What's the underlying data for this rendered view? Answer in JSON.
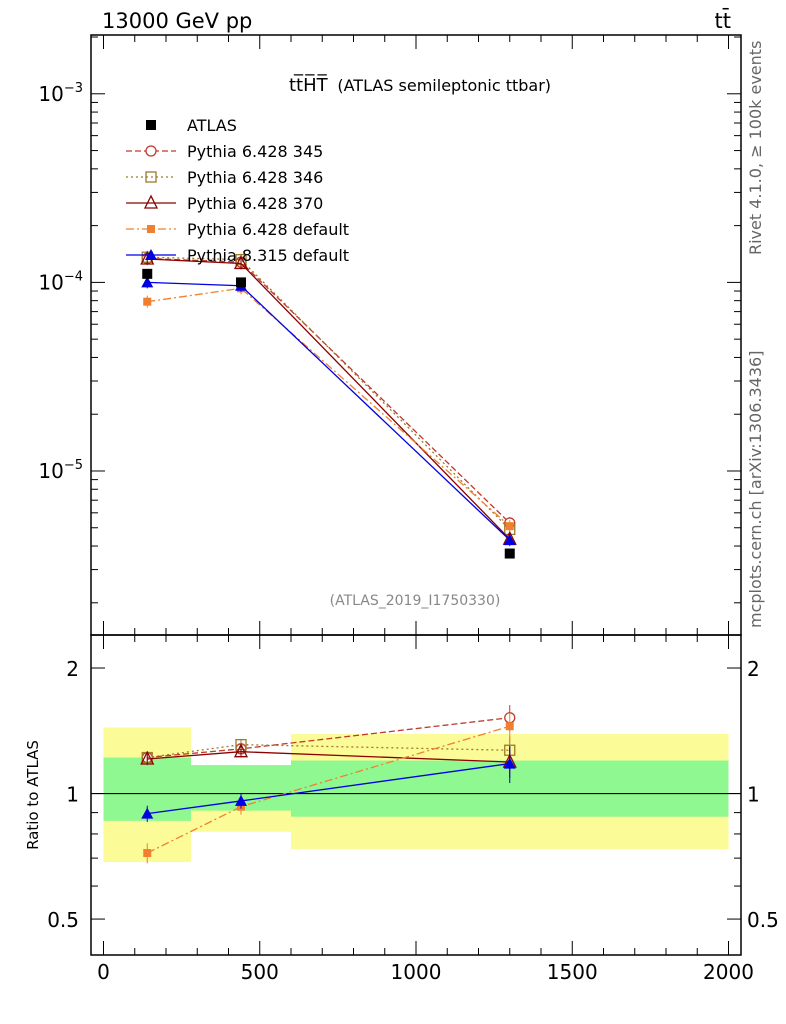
{
  "header": {
    "energy_label": "13000 GeV pp",
    "process_label": "tt̄"
  },
  "side_labels": {
    "rivet": "Rivet 4.1.0, ≥ 100k events",
    "mcplots": "mcplots.cern.ch [arXiv:1306.3436]"
  },
  "colors": {
    "atlas": "#000000",
    "p345": "#c0392b",
    "p346": "#9c7a2a",
    "p370": "#8b0000",
    "pdefault": "#f08030",
    "p8": "#0000e0",
    "band_inner": "#90f890",
    "band_outer": "#fbfb98"
  },
  "chart_data": {
    "type": "line",
    "title": "tt̅H̅T̅",
    "subtitle": "(ATLAS semileptonic ttbar)",
    "analysis_ref": "(ATLAS_2019_I1750330)",
    "xlabel": "",
    "ylabel": "",
    "ratio_ylabel": "Ratio to ATLAS",
    "xlim": [
      -40,
      2040
    ],
    "ylim": [
      1.35e-06,
      0.00205
    ],
    "y_scale": "log",
    "ratio_ylim": [
      0.41,
      2.4
    ],
    "ratio_scale": "log",
    "x_ticks": [
      "0",
      "500",
      "1000",
      "1500",
      "2000"
    ],
    "y_tick_values": [
      1e-05,
      0.0001,
      0.001
    ],
    "y_tick_labels": [
      {
        "base": "10",
        "exp": "−5"
      },
      {
        "base": "10",
        "exp": "−4"
      },
      {
        "base": "10",
        "exp": "−3"
      }
    ],
    "ratio_tick_labels": [
      "0.5",
      "1",
      "2"
    ],
    "ratio_tick_values": [
      0.5,
      1,
      2
    ],
    "legend_position": "top-left",
    "bins": [
      {
        "lo": 0,
        "hi": 280,
        "center": 140
      },
      {
        "lo": 280,
        "hi": 600,
        "center": 440
      },
      {
        "lo": 600,
        "hi": 2000,
        "center": 1300
      }
    ],
    "data": {
      "name": "ATLAS",
      "x": [
        140,
        440,
        1300
      ],
      "y": [
        0.000111,
        0.0001,
        3.65e-06
      ],
      "band_inner": [
        [
          0.86,
          1.22
        ],
        [
          0.91,
          1.17
        ],
        [
          0.88,
          1.2
        ]
      ],
      "band_outer": [
        [
          0.685,
          1.44
        ],
        [
          0.81,
          1.17
        ],
        [
          0.735,
          1.39
        ]
      ]
    },
    "series": [
      {
        "name": "Pythia 6.428 345",
        "color_key": "p345",
        "dash": "6,3",
        "marker": "circle-open",
        "x": [
          140,
          440,
          1300
        ],
        "y": [
          0.000134,
          0.000128,
          5.3e-06
        ],
        "ratio": [
          1.22,
          1.28,
          1.52
        ],
        "ratio_err": [
          0.04,
          0.04,
          0.11
        ]
      },
      {
        "name": "Pythia 6.428 346",
        "color_key": "p346",
        "dash": "2,3",
        "marker": "square-open",
        "x": [
          140,
          440,
          1300
        ],
        "y": [
          0.000136,
          0.000132,
          4.9e-06
        ],
        "ratio": [
          1.22,
          1.31,
          1.27
        ],
        "ratio_err": [
          0.04,
          0.04,
          0.1
        ]
      },
      {
        "name": "Pythia 6.428 370",
        "color_key": "p370",
        "dash": "",
        "marker": "triangle-open",
        "x": [
          140,
          440,
          1300
        ],
        "y": [
          0.000133,
          0.000126,
          4.35e-06
        ],
        "ratio": [
          1.21,
          1.26,
          1.19
        ],
        "ratio_err": [
          0.04,
          0.04,
          0.1
        ]
      },
      {
        "name": "Pythia 6.428 default",
        "color_key": "pdefault",
        "dash": "8,3,2,3",
        "marker": "square-filled",
        "x": [
          140,
          440,
          1300
        ],
        "y": [
          7.9e-05,
          9.3e-05,
          5.1e-06
        ],
        "ratio": [
          0.72,
          0.93,
          1.45
        ],
        "ratio_err": [
          0.04,
          0.04,
          0.11
        ]
      },
      {
        "name": "Pythia 8.315 default",
        "color_key": "p8",
        "dash": "",
        "marker": "triangle-filled",
        "x": [
          140,
          440,
          1300
        ],
        "y": [
          0.0001,
          9.6e-05,
          4.3e-06
        ],
        "ratio": [
          0.895,
          0.96,
          1.18
        ],
        "ratio_err": [
          0.04,
          0.04,
          0.12
        ]
      }
    ]
  }
}
